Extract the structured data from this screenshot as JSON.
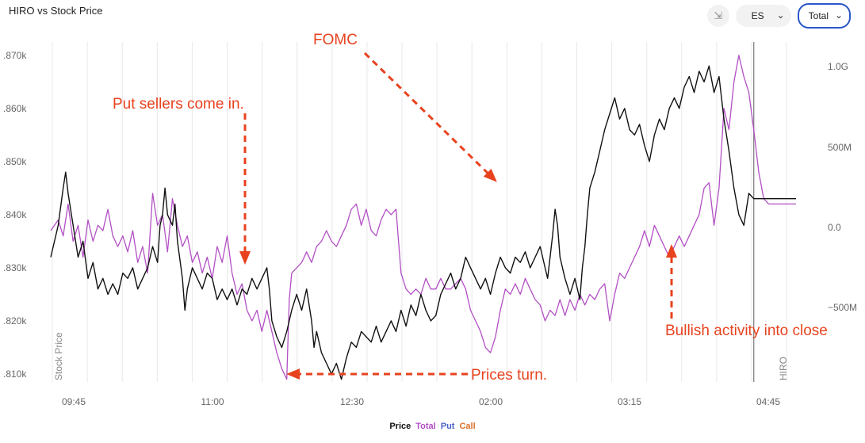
{
  "header": {
    "title": "HIRO vs Stock Price",
    "symbol_select": "ES",
    "mode_select": "Total"
  },
  "legend": [
    {
      "label": "Price",
      "color": "#111111"
    },
    {
      "label": "Total",
      "color": "#b24fc4"
    },
    {
      "label": "Put",
      "color": "#4a62c4"
    },
    {
      "label": "Call",
      "color": "#d9722e"
    }
  ],
  "annotations": [
    {
      "text": "Put sellers come in.",
      "color": "#e8421e"
    },
    {
      "text": "FOMC",
      "color": "#e8421e"
    },
    {
      "text": "Prices turn.",
      "color": "#e8421e"
    },
    {
      "text": "Bullish activity into close",
      "color": "#e8421e"
    }
  ],
  "chart_data": {
    "type": "line",
    "title": "HIRO vs Stock Price",
    "x_ticks": [
      "09:45",
      "11:00",
      "12:30",
      "02:00",
      "03:15",
      "04:45"
    ],
    "y_left_label": "Stock Price",
    "y_left_ticks": [
      ".810k",
      ".820k",
      ".830k",
      ".840k",
      ".850k",
      ".860k",
      ".870k"
    ],
    "y_right_label": "HIRO",
    "y_right_ticks": [
      "−500M",
      "0.0",
      "500M",
      "1.0G"
    ],
    "series": [
      {
        "name": "Price",
        "color": "#111111",
        "points": [
          [
            0,
            0.832
          ],
          [
            3,
            0.838
          ],
          [
            5,
            0.845
          ],
          [
            6,
            0.848
          ],
          [
            7,
            0.844
          ],
          [
            9,
            0.838
          ],
          [
            11,
            0.832
          ],
          [
            13,
            0.835
          ],
          [
            15,
            0.828
          ],
          [
            17,
            0.831
          ],
          [
            19,
            0.826
          ],
          [
            21,
            0.828
          ],
          [
            23,
            0.825
          ],
          [
            25,
            0.827
          ],
          [
            27,
            0.825
          ],
          [
            29,
            0.829
          ],
          [
            31,
            0.828
          ],
          [
            33,
            0.83
          ],
          [
            35,
            0.826
          ],
          [
            37,
            0.828
          ],
          [
            39,
            0.83
          ],
          [
            41,
            0.834
          ],
          [
            43,
            0.831
          ],
          [
            44,
            0.838
          ],
          [
            45,
            0.84
          ],
          [
            46,
            0.845
          ],
          [
            47,
            0.84
          ],
          [
            49,
            0.838
          ],
          [
            50,
            0.842
          ],
          [
            51,
            0.835
          ],
          [
            53,
            0.828
          ],
          [
            54,
            0.822
          ],
          [
            55,
            0.826
          ],
          [
            57,
            0.83
          ],
          [
            59,
            0.828
          ],
          [
            61,
            0.826
          ],
          [
            63,
            0.829
          ],
          [
            65,
            0.828
          ],
          [
            67,
            0.824
          ],
          [
            69,
            0.826
          ],
          [
            71,
            0.824
          ],
          [
            73,
            0.826
          ],
          [
            75,
            0.823
          ],
          [
            77,
            0.826
          ],
          [
            79,
            0.825
          ],
          [
            81,
            0.828
          ],
          [
            83,
            0.826
          ],
          [
            85,
            0.828
          ],
          [
            87,
            0.83
          ],
          [
            88,
            0.826
          ],
          [
            89,
            0.82
          ],
          [
            91,
            0.817
          ],
          [
            93,
            0.815
          ],
          [
            95,
            0.818
          ],
          [
            97,
            0.822
          ],
          [
            99,
            0.825
          ],
          [
            101,
            0.822
          ],
          [
            103,
            0.826
          ],
          [
            105,
            0.82
          ],
          [
            106,
            0.815
          ],
          [
            107,
            0.818
          ],
          [
            109,
            0.814
          ],
          [
            111,
            0.812
          ],
          [
            113,
            0.81
          ],
          [
            115,
            0.812
          ],
          [
            117,
            0.809
          ],
          [
            119,
            0.813
          ],
          [
            121,
            0.816
          ],
          [
            123,
            0.815
          ],
          [
            125,
            0.818
          ],
          [
            127,
            0.817
          ],
          [
            129,
            0.816
          ],
          [
            131,
            0.819
          ],
          [
            133,
            0.816
          ],
          [
            135,
            0.818
          ],
          [
            137,
            0.82
          ],
          [
            139,
            0.818
          ],
          [
            141,
            0.822
          ],
          [
            143,
            0.819
          ],
          [
            145,
            0.823
          ],
          [
            147,
            0.821
          ],
          [
            149,
            0.825
          ],
          [
            151,
            0.822
          ],
          [
            153,
            0.82
          ],
          [
            155,
            0.821
          ],
          [
            157,
            0.825
          ],
          [
            159,
            0.827
          ],
          [
            161,
            0.829
          ],
          [
            163,
            0.826
          ],
          [
            165,
            0.828
          ],
          [
            167,
            0.832
          ],
          [
            169,
            0.83
          ],
          [
            171,
            0.828
          ],
          [
            173,
            0.826
          ],
          [
            175,
            0.828
          ],
          [
            177,
            0.825
          ],
          [
            179,
            0.829
          ],
          [
            181,
            0.832
          ],
          [
            183,
            0.83
          ],
          [
            185,
            0.829
          ],
          [
            187,
            0.832
          ],
          [
            189,
            0.831
          ],
          [
            191,
            0.833
          ],
          [
            193,
            0.83
          ],
          [
            195,
            0.832
          ],
          [
            197,
            0.834
          ],
          [
            199,
            0.83
          ],
          [
            200,
            0.828
          ],
          [
            201,
            0.832
          ],
          [
            202,
            0.836
          ],
          [
            203,
            0.841
          ],
          [
            204,
            0.838
          ],
          [
            205,
            0.832
          ],
          [
            207,
            0.828
          ],
          [
            209,
            0.825
          ],
          [
            211,
            0.828
          ],
          [
            213,
            0.824
          ],
          [
            214,
            0.83
          ],
          [
            215,
            0.834
          ],
          [
            216,
            0.84
          ],
          [
            217,
            0.845
          ],
          [
            219,
            0.848
          ],
          [
            221,
            0.852
          ],
          [
            223,
            0.856
          ],
          [
            225,
            0.859
          ],
          [
            227,
            0.862
          ],
          [
            229,
            0.858
          ],
          [
            231,
            0.86
          ],
          [
            233,
            0.856
          ],
          [
            235,
            0.855
          ],
          [
            237,
            0.857
          ],
          [
            239,
            0.853
          ],
          [
            241,
            0.85
          ],
          [
            243,
            0.855
          ],
          [
            245,
            0.858
          ],
          [
            247,
            0.856
          ],
          [
            249,
            0.86
          ],
          [
            251,
            0.862
          ],
          [
            253,
            0.86
          ],
          [
            255,
            0.864
          ],
          [
            257,
            0.866
          ],
          [
            259,
            0.863
          ],
          [
            261,
            0.867
          ],
          [
            263,
            0.865
          ],
          [
            265,
            0.868
          ],
          [
            267,
            0.863
          ],
          [
            269,
            0.866
          ],
          [
            271,
            0.858
          ],
          [
            273,
            0.852
          ],
          [
            275,
            0.845
          ],
          [
            277,
            0.84
          ],
          [
            279,
            0.838
          ],
          [
            281,
            0.844
          ],
          [
            283,
            0.843
          ],
          [
            285,
            0.843
          ],
          [
            293,
            0.843
          ],
          [
            300,
            0.843
          ]
        ]
      },
      {
        "name": "Total",
        "color": "#b24fc4",
        "points": [
          [
            0,
            0.837
          ],
          [
            3,
            0.839
          ],
          [
            5,
            0.836
          ],
          [
            7,
            0.842
          ],
          [
            9,
            0.835
          ],
          [
            11,
            0.838
          ],
          [
            13,
            0.832
          ],
          [
            15,
            0.839
          ],
          [
            17,
            0.835
          ],
          [
            19,
            0.838
          ],
          [
            21,
            0.837
          ],
          [
            23,
            0.841
          ],
          [
            25,
            0.836
          ],
          [
            27,
            0.834
          ],
          [
            29,
            0.836
          ],
          [
            31,
            0.833
          ],
          [
            33,
            0.837
          ],
          [
            35,
            0.831
          ],
          [
            37,
            0.834
          ],
          [
            39,
            0.829
          ],
          [
            41,
            0.844
          ],
          [
            43,
            0.838
          ],
          [
            45,
            0.84
          ],
          [
            47,
            0.833
          ],
          [
            49,
            0.843
          ],
          [
            51,
            0.838
          ],
          [
            53,
            0.834
          ],
          [
            55,
            0.836
          ],
          [
            57,
            0.831
          ],
          [
            59,
            0.833
          ],
          [
            61,
            0.829
          ],
          [
            63,
            0.832
          ],
          [
            65,
            0.828
          ],
          [
            67,
            0.834
          ],
          [
            69,
            0.831
          ],
          [
            71,
            0.836
          ],
          [
            73,
            0.829
          ],
          [
            75,
            0.825
          ],
          [
            77,
            0.827
          ],
          [
            79,
            0.822
          ],
          [
            81,
            0.82
          ],
          [
            83,
            0.822
          ],
          [
            85,
            0.818
          ],
          [
            87,
            0.822
          ],
          [
            89,
            0.818
          ],
          [
            91,
            0.814
          ],
          [
            93,
            0.811
          ],
          [
            95,
            0.809
          ],
          [
            96,
            0.824
          ],
          [
            97,
            0.829
          ],
          [
            99,
            0.83
          ],
          [
            101,
            0.831
          ],
          [
            103,
            0.833
          ],
          [
            105,
            0.831
          ],
          [
            107,
            0.834
          ],
          [
            109,
            0.835
          ],
          [
            111,
            0.837
          ],
          [
            113,
            0.835
          ],
          [
            115,
            0.834
          ],
          [
            117,
            0.836
          ],
          [
            119,
            0.838
          ],
          [
            121,
            0.841
          ],
          [
            123,
            0.842
          ],
          [
            125,
            0.838
          ],
          [
            127,
            0.841
          ],
          [
            129,
            0.837
          ],
          [
            131,
            0.836
          ],
          [
            133,
            0.839
          ],
          [
            135,
            0.841
          ],
          [
            137,
            0.84
          ],
          [
            139,
            0.841
          ],
          [
            141,
            0.829
          ],
          [
            143,
            0.826
          ],
          [
            145,
            0.825
          ],
          [
            147,
            0.826
          ],
          [
            149,
            0.825
          ],
          [
            151,
            0.828
          ],
          [
            153,
            0.826
          ],
          [
            155,
            0.826
          ],
          [
            157,
            0.828
          ],
          [
            159,
            0.826
          ],
          [
            161,
            0.826
          ],
          [
            163,
            0.827
          ],
          [
            165,
            0.828
          ],
          [
            167,
            0.826
          ],
          [
            169,
            0.822
          ],
          [
            171,
            0.82
          ],
          [
            173,
            0.818
          ],
          [
            175,
            0.815
          ],
          [
            177,
            0.814
          ],
          [
            179,
            0.817
          ],
          [
            181,
            0.822
          ],
          [
            183,
            0.826
          ],
          [
            185,
            0.825
          ],
          [
            187,
            0.827
          ],
          [
            189,
            0.825
          ],
          [
            191,
            0.828
          ],
          [
            193,
            0.826
          ],
          [
            195,
            0.824
          ],
          [
            197,
            0.823
          ],
          [
            199,
            0.82
          ],
          [
            201,
            0.822
          ],
          [
            203,
            0.821
          ],
          [
            205,
            0.824
          ],
          [
            207,
            0.821
          ],
          [
            209,
            0.824
          ],
          [
            211,
            0.822
          ],
          [
            213,
            0.825
          ],
          [
            215,
            0.823
          ],
          [
            217,
            0.825
          ],
          [
            219,
            0.824
          ],
          [
            221,
            0.826
          ],
          [
            223,
            0.827
          ],
          [
            225,
            0.82
          ],
          [
            227,
            0.825
          ],
          [
            229,
            0.829
          ],
          [
            231,
            0.828
          ],
          [
            233,
            0.83
          ],
          [
            235,
            0.832
          ],
          [
            237,
            0.834
          ],
          [
            239,
            0.837
          ],
          [
            241,
            0.834
          ],
          [
            243,
            0.838
          ],
          [
            245,
            0.836
          ],
          [
            247,
            0.834
          ],
          [
            249,
            0.832
          ],
          [
            251,
            0.834
          ],
          [
            253,
            0.836
          ],
          [
            255,
            0.834
          ],
          [
            257,
            0.836
          ],
          [
            259,
            0.838
          ],
          [
            261,
            0.84
          ],
          [
            263,
            0.845
          ],
          [
            265,
            0.846
          ],
          [
            267,
            0.838
          ],
          [
            269,
            0.845
          ],
          [
            271,
            0.86
          ],
          [
            273,
            0.856
          ],
          [
            275,
            0.865
          ],
          [
            277,
            0.87
          ],
          [
            279,
            0.866
          ],
          [
            281,
            0.863
          ],
          [
            283,
            0.856
          ],
          [
            285,
            0.848
          ],
          [
            287,
            0.843
          ],
          [
            289,
            0.842
          ],
          [
            295,
            0.842
          ],
          [
            300,
            0.842
          ]
        ]
      }
    ],
    "close_marker_x": 283
  }
}
